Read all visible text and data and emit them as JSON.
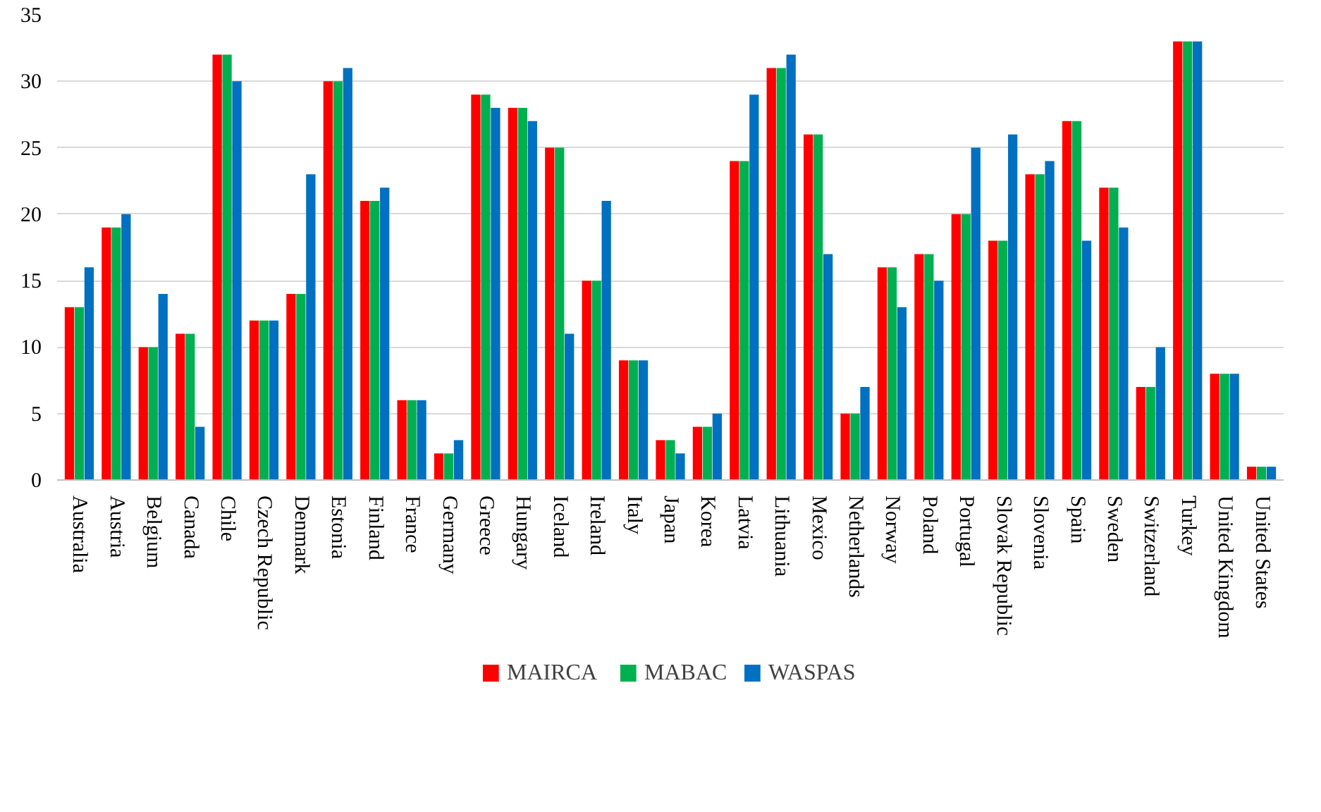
{
  "chart_data": {
    "type": "bar",
    "categories": [
      "Australia",
      "Austria",
      "Belgium",
      "Canada",
      "Chile",
      "Czech Republic",
      "Denmark",
      "Estonia",
      "Finland",
      "France",
      "Germany",
      "Greece",
      "Hungary",
      "Iceland",
      "Ireland",
      "Italy",
      "Japan",
      "Korea",
      "Latvia",
      "Lithuania",
      "Mexico",
      "Netherlands",
      "Norway",
      "Poland",
      "Portugal",
      "Slovak Republic",
      "Slovenia",
      "Spain",
      "Sweden",
      "Switzerland",
      "Turkey",
      "United Kingdom",
      "United States"
    ],
    "series": [
      {
        "name": "MAIRCA",
        "color": "#ff0000",
        "values": [
          13,
          19,
          10,
          11,
          32,
          12,
          14,
          30,
          21,
          6,
          2,
          29,
          28,
          25,
          15,
          9,
          3,
          4,
          24,
          31,
          26,
          5,
          16,
          17,
          20,
          18,
          23,
          27,
          22,
          7,
          33,
          8,
          1
        ]
      },
      {
        "name": "MABAC",
        "color": "#00b050",
        "values": [
          13,
          19,
          10,
          11,
          32,
          12,
          14,
          30,
          21,
          6,
          2,
          29,
          28,
          25,
          15,
          9,
          3,
          4,
          24,
          31,
          26,
          5,
          16,
          17,
          20,
          18,
          23,
          27,
          22,
          7,
          33,
          8,
          1
        ]
      },
      {
        "name": "WASPAS",
        "color": "#0070c0",
        "values": [
          16,
          20,
          14,
          4,
          30,
          12,
          23,
          31,
          22,
          6,
          3,
          28,
          27,
          11,
          21,
          9,
          2,
          5,
          29,
          32,
          17,
          7,
          13,
          15,
          25,
          26,
          24,
          18,
          19,
          10,
          33,
          8,
          1
        ]
      }
    ],
    "ylim": [
      0,
      35
    ],
    "yticks": [
      0,
      5,
      10,
      15,
      20,
      25,
      30,
      35
    ],
    "grid": "y",
    "legend": "bottom"
  }
}
